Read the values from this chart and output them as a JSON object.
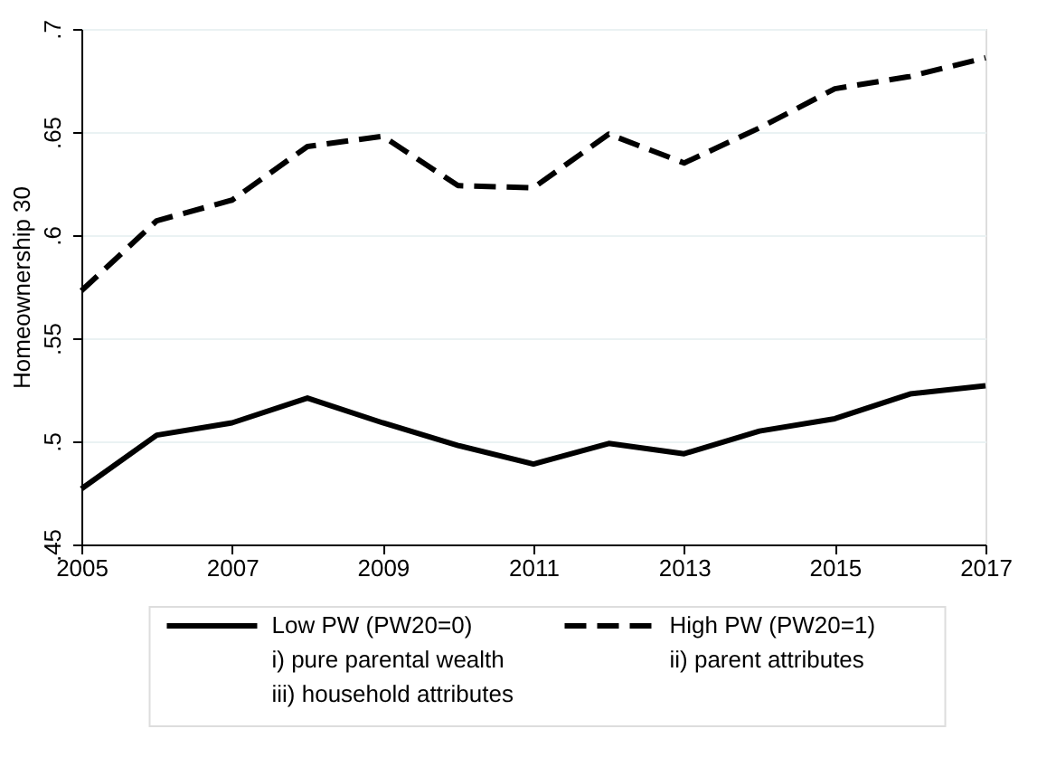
{
  "chart_data": {
    "type": "line",
    "ylabel": "Homeownership 30",
    "x": [
      2005,
      2006,
      2007,
      2008,
      2009,
      2010,
      2011,
      2012,
      2013,
      2014,
      2015,
      2016,
      2017
    ],
    "series": [
      {
        "name": "Low PW (PW20=0)",
        "color": "#000000",
        "line_style": "solid",
        "values": [
          0.477,
          0.503,
          0.509,
          0.521,
          0.509,
          0.498,
          0.489,
          0.499,
          0.494,
          0.505,
          0.511,
          0.523,
          0.527
        ]
      },
      {
        "name": "High PW (PW20=1)",
        "color": "#000000",
        "line_style": "dashed",
        "values": [
          0.573,
          0.607,
          0.617,
          0.643,
          0.648,
          0.624,
          0.623,
          0.649,
          0.635,
          0.652,
          0.671,
          0.677,
          0.686
        ]
      }
    ],
    "xlim": [
      2005,
      2017
    ],
    "xticks": [
      2005,
      2007,
      2009,
      2011,
      2013,
      2015,
      2017
    ],
    "ylim": [
      0.45,
      0.7
    ],
    "yticks": [
      {
        "value": 0.45,
        "label": ".45"
      },
      {
        "value": 0.5,
        "label": ".5"
      },
      {
        "value": 0.55,
        "label": ".55"
      },
      {
        "value": 0.6,
        "label": ".6"
      },
      {
        "value": 0.65,
        "label": ".65"
      },
      {
        "value": 0.7,
        "label": ".7"
      }
    ],
    "grid": "y",
    "legend": "bottom",
    "marker": "none",
    "annotations": [
      "i) pure parental wealth",
      "ii) parent attributes",
      "iii) household attributes"
    ]
  }
}
